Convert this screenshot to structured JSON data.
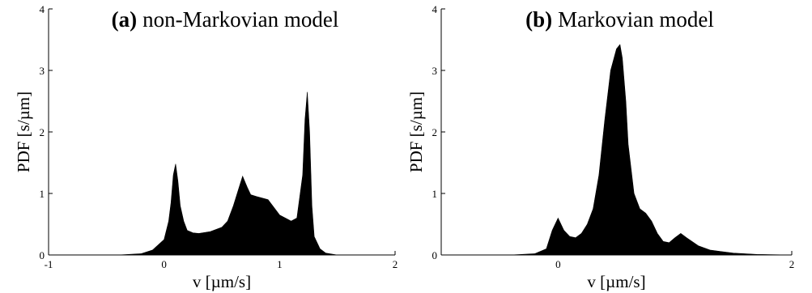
{
  "chart_data": [
    {
      "type": "area",
      "title_tag": "(a)",
      "title_text": "non-Markovian model",
      "xlabel": "v [µm/s]",
      "ylabel": "PDF [s/µm]",
      "xlim": [
        -1,
        2
      ],
      "ylim": [
        0,
        4
      ],
      "xticks": [
        "-1",
        "0",
        "1",
        "2"
      ],
      "yticks": [
        "0",
        "1",
        "2",
        "3",
        "4"
      ],
      "x": [
        -1.0,
        -0.4,
        -0.2,
        -0.1,
        0.0,
        0.04,
        0.06,
        0.08,
        0.1,
        0.12,
        0.14,
        0.17,
        0.2,
        0.25,
        0.3,
        0.4,
        0.5,
        0.55,
        0.6,
        0.65,
        0.68,
        0.72,
        0.75,
        0.8,
        0.9,
        1.0,
        1.05,
        1.1,
        1.15,
        1.2,
        1.22,
        1.24,
        1.26,
        1.28,
        1.3,
        1.35,
        1.4,
        1.5,
        2.0
      ],
      "y": [
        0,
        0,
        0.02,
        0.08,
        0.25,
        0.55,
        0.85,
        1.3,
        1.48,
        1.2,
        0.8,
        0.55,
        0.4,
        0.36,
        0.35,
        0.38,
        0.45,
        0.55,
        0.8,
        1.1,
        1.28,
        1.1,
        0.98,
        0.95,
        0.9,
        0.65,
        0.6,
        0.55,
        0.6,
        1.3,
        2.2,
        2.65,
        2.0,
        0.8,
        0.3,
        0.1,
        0.03,
        0,
        0
      ]
    },
    {
      "type": "area",
      "title_tag": "(b)",
      "title_text": "Markovian model",
      "xlabel": "v [µm/s]",
      "ylabel": "PDF [s/µm]",
      "xlim": [
        -1,
        2
      ],
      "ylim": [
        0,
        4
      ],
      "xticks": [
        "0",
        "2"
      ],
      "yticks": [
        "0",
        "1",
        "2",
        "3",
        "4"
      ],
      "x": [
        -1.0,
        -0.4,
        -0.2,
        -0.1,
        -0.05,
        0.0,
        0.05,
        0.1,
        0.15,
        0.2,
        0.25,
        0.3,
        0.35,
        0.4,
        0.45,
        0.5,
        0.53,
        0.55,
        0.58,
        0.6,
        0.65,
        0.7,
        0.75,
        0.8,
        0.85,
        0.9,
        0.95,
        1.0,
        1.05,
        1.1,
        1.2,
        1.3,
        1.5,
        1.7,
        2.0
      ],
      "y": [
        0,
        0,
        0.02,
        0.1,
        0.4,
        0.6,
        0.4,
        0.3,
        0.28,
        0.35,
        0.5,
        0.75,
        1.3,
        2.2,
        3.0,
        3.35,
        3.42,
        3.2,
        2.5,
        1.8,
        1.0,
        0.75,
        0.68,
        0.55,
        0.35,
        0.22,
        0.2,
        0.28,
        0.35,
        0.28,
        0.15,
        0.08,
        0.03,
        0.01,
        0
      ]
    }
  ]
}
